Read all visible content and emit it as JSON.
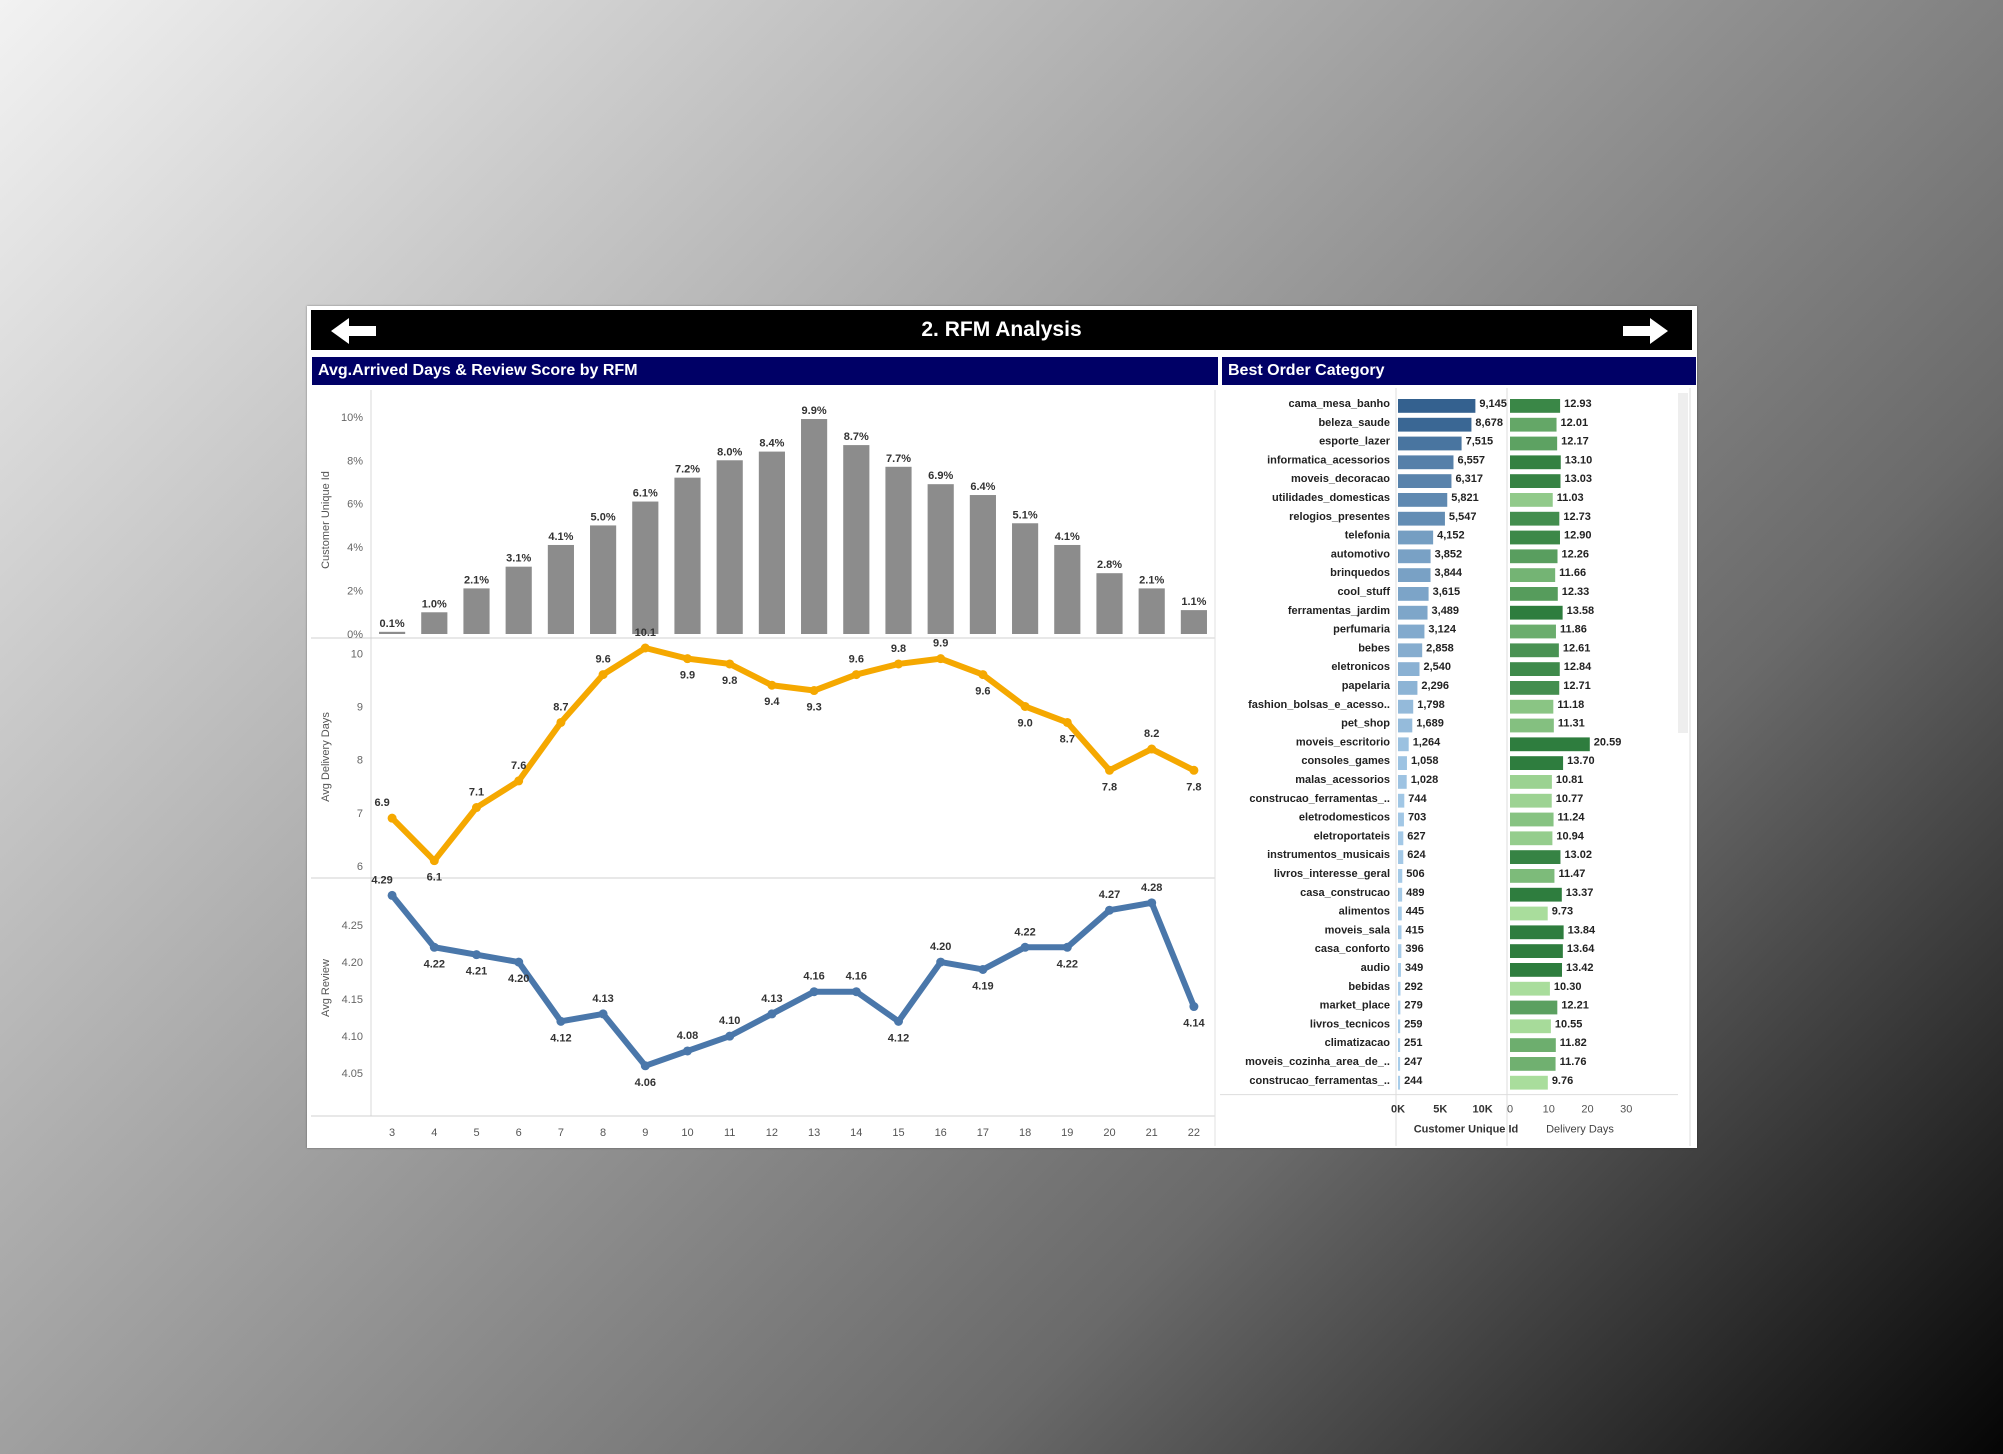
{
  "dashboard": {
    "title": "2. RFM Analysis",
    "nav": {
      "prev_icon": "arrow-left-icon",
      "next_icon": "arrow-right-icon"
    },
    "left_panel_title": "Avg.Arrived Days & Review Score by RFM",
    "right_panel_title": "Best Order Category"
  },
  "colors": {
    "title_bar": "#000000",
    "panel_header": "#000066",
    "bar_gray": "#8c8c8c",
    "line_orange": "#f5a800",
    "line_blue": "#4a77aa",
    "blue_dark": "#34618f",
    "blue_light": "#a8cdea",
    "green_dark": "#2e7d3e",
    "green_light": "#a9dd9c"
  },
  "chart_data": [
    {
      "type": "bar",
      "ylabel": "Customer Unique Id",
      "x": [
        3,
        4,
        5,
        6,
        7,
        8,
        9,
        10,
        11,
        12,
        13,
        14,
        15,
        16,
        17,
        18,
        19,
        20,
        21,
        22
      ],
      "values": [
        0.1,
        1.0,
        2.1,
        3.1,
        4.1,
        5.0,
        6.1,
        7.2,
        8.0,
        8.4,
        9.9,
        8.7,
        7.7,
        6.9,
        6.4,
        5.1,
        4.1,
        2.8,
        2.1,
        1.1
      ],
      "data_labels": [
        "0.1%",
        "1.0%",
        "2.1%",
        "3.1%",
        "4.1%",
        "5.0%",
        "6.1%",
        "7.2%",
        "8.0%",
        "8.4%",
        "9.9%",
        "8.7%",
        "7.7%",
        "6.9%",
        "6.4%",
        "5.1%",
        "4.1%",
        "2.8%",
        "2.1%",
        "1.1%"
      ],
      "ylim": [
        0,
        10.5
      ],
      "yticks": [
        0,
        2,
        4,
        6,
        8,
        10
      ],
      "ytick_labels": [
        "0%",
        "2%",
        "4%",
        "6%",
        "8%",
        "10%"
      ]
    },
    {
      "type": "line",
      "ylabel": "Avg Delivery Days",
      "x": [
        3,
        4,
        5,
        6,
        7,
        8,
        9,
        10,
        11,
        12,
        13,
        14,
        15,
        16,
        17,
        18,
        19,
        20,
        21,
        22
      ],
      "values": [
        6.9,
        6.1,
        7.1,
        7.6,
        8.7,
        9.6,
        10.1,
        9.9,
        9.8,
        9.4,
        9.3,
        9.6,
        9.8,
        9.9,
        9.6,
        9.0,
        8.7,
        7.8,
        8.2,
        7.8
      ],
      "data_labels": [
        "6.9",
        "6.1",
        "7.1",
        "7.6",
        "8.7",
        "9.6",
        "10.1",
        "9.9",
        "9.8",
        "9.4",
        "9.3",
        "9.6",
        "9.8",
        "9.9",
        "9.6",
        "9.0",
        "8.7",
        "7.8",
        "8.2",
        "7.8"
      ],
      "ylim": [
        6,
        10.1
      ],
      "yticks": [
        6,
        7,
        8,
        9,
        10
      ],
      "ytick_labels": [
        "6",
        "7",
        "8",
        "9",
        "10"
      ]
    },
    {
      "type": "line",
      "ylabel": "Avg Review",
      "x": [
        3,
        4,
        5,
        6,
        7,
        8,
        9,
        10,
        11,
        12,
        13,
        14,
        15,
        16,
        17,
        18,
        19,
        20,
        21,
        22
      ],
      "x_tick_labels": [
        "3",
        "4",
        "5",
        "6",
        "7",
        "8",
        "9",
        "10",
        "11",
        "12",
        "13",
        "14",
        "15",
        "16",
        "17",
        "18",
        "19",
        "20",
        "21",
        "22"
      ],
      "values": [
        4.29,
        4.22,
        4.21,
        4.2,
        4.12,
        4.13,
        4.06,
        4.08,
        4.1,
        4.13,
        4.16,
        4.16,
        4.12,
        4.2,
        4.19,
        4.22,
        4.22,
        4.27,
        4.28,
        4.14
      ],
      "data_labels": [
        "4.29",
        "4.22",
        "4.21",
        "4.20",
        "4.12",
        "4.13",
        "4.06",
        "4.08",
        "4.10",
        "4.13",
        "4.16",
        "4.16",
        "4.12",
        "4.20",
        "4.19",
        "4.22",
        "4.22",
        "4.27",
        "4.28",
        "4.14"
      ],
      "ylim": [
        4.03,
        4.3
      ],
      "yticks": [
        4.05,
        4.1,
        4.15,
        4.2,
        4.25
      ],
      "ytick_labels": [
        "4.05",
        "4.10",
        "4.15",
        "4.20",
        "4.25"
      ]
    },
    {
      "type": "bar",
      "orientation": "horizontal",
      "categories": [
        "cama_mesa_banho",
        "beleza_saude",
        "esporte_lazer",
        "informatica_acessorios",
        "moveis_decoracao",
        "utilidades_domesticas",
        "relogios_presentes",
        "telefonia",
        "automotivo",
        "brinquedos",
        "cool_stuff",
        "ferramentas_jardim",
        "perfumaria",
        "bebes",
        "eletronicos",
        "papelaria",
        "fashion_bolsas_e_acesso..",
        "pet_shop",
        "moveis_escritorio",
        "consoles_games",
        "malas_acessorios",
        "construcao_ferramentas_..",
        "eletrodomesticos",
        "eletroportateis",
        "instrumentos_musicais",
        "livros_interesse_geral",
        "casa_construcao",
        "alimentos",
        "moveis_sala",
        "casa_conforto",
        "audio",
        "bebidas",
        "market_place",
        "livros_tecnicos",
        "climatizacao",
        "moveis_cozinha_area_de_..",
        "construcao_ferramentas_.."
      ],
      "series": [
        {
          "name": "Customer Unique Id",
          "values": [
            9145,
            8678,
            7515,
            6557,
            6317,
            5821,
            5547,
            4152,
            3852,
            3844,
            3615,
            3489,
            3124,
            2858,
            2540,
            2296,
            1798,
            1689,
            1264,
            1058,
            1028,
            744,
            703,
            627,
            624,
            506,
            489,
            445,
            415,
            396,
            349,
            292,
            279,
            259,
            251,
            247,
            244
          ],
          "data_labels": [
            "9,145",
            "8,678",
            "7,515",
            "6,557",
            "6,317",
            "5,821",
            "5,547",
            "4,152",
            "3,852",
            "3,844",
            "3,615",
            "3,489",
            "3,124",
            "2,858",
            "2,540",
            "2,296",
            "1,798",
            "1,689",
            "1,264",
            "1,058",
            "1,028",
            "744",
            "703",
            "627",
            "624",
            "506",
            "489",
            "445",
            "415",
            "396",
            "349",
            "292",
            "279",
            "259",
            "251",
            "247",
            "244"
          ],
          "xlim": [
            0,
            13000
          ],
          "xticks": [
            0,
            5000,
            10000
          ],
          "xtick_labels": [
            "0K",
            "5K",
            "10K"
          ]
        },
        {
          "name": "Delivery Days",
          "values": [
            12.93,
            12.01,
            12.17,
            13.1,
            13.03,
            11.03,
            12.73,
            12.9,
            12.26,
            11.66,
            12.33,
            13.58,
            11.86,
            12.61,
            12.84,
            12.71,
            11.18,
            11.31,
            20.59,
            13.7,
            10.81,
            10.77,
            11.24,
            10.94,
            13.02,
            11.47,
            13.37,
            9.73,
            13.84,
            13.64,
            13.42,
            10.3,
            12.21,
            10.55,
            11.82,
            11.76,
            9.76
          ],
          "data_labels": [
            "12.93",
            "12.01",
            "12.17",
            "13.10",
            "13.03",
            "11.03",
            "12.73",
            "12.90",
            "12.26",
            "11.66",
            "12.33",
            "13.58",
            "11.86",
            "12.61",
            "12.84",
            "12.71",
            "11.18",
            "11.31",
            "20.59",
            "13.70",
            "10.81",
            "10.77",
            "11.24",
            "10.94",
            "13.02",
            "11.47",
            "13.37",
            "9.73",
            "13.84",
            "13.64",
            "13.42",
            "10.30",
            "12.21",
            "10.55",
            "11.82",
            "11.76",
            "9.76"
          ],
          "xlim": [
            0,
            32
          ],
          "xticks": [
            0,
            10,
            20,
            30
          ],
          "xtick_labels": [
            "0",
            "10",
            "20",
            "30"
          ]
        }
      ]
    }
  ]
}
